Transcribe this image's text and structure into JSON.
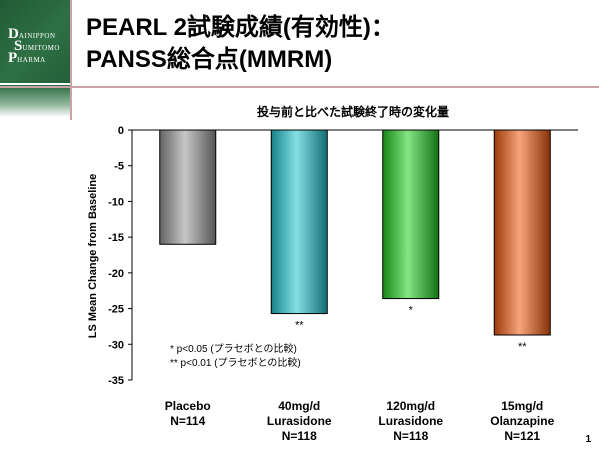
{
  "logo": {
    "line1_initial": "D",
    "line1_rest": "AINIPPON",
    "line2_initial": "S",
    "line2_rest": "UMITOMO",
    "line3_initial": "P",
    "line3_rest": "HARMA"
  },
  "slide": {
    "title_line1": "PEARL 2試験成績(有効性)：",
    "title_line2": "PANSS総合点(MMRM)",
    "page_number": "1"
  },
  "chart_data": {
    "type": "bar",
    "title": "投与前と比べた試験終了時の変化量",
    "ylabel": "LS Mean Change from Baseline",
    "xlabel": "",
    "ylim": [
      -35,
      0
    ],
    "yticks": [
      0,
      -5,
      -10,
      -15,
      -20,
      -25,
      -30,
      -35
    ],
    "grid": false,
    "categories": [
      [
        "Placebo",
        "N=114"
      ],
      [
        "40mg/d",
        "Lurasidone",
        "N=118"
      ],
      [
        "120mg/d",
        "Lurasidone",
        "N=118"
      ],
      [
        "15mg/d",
        "Olanzapine",
        "N=121"
      ]
    ],
    "values": [
      -16.0,
      -25.7,
      -23.6,
      -28.7
    ],
    "significance": [
      "",
      "**",
      "*",
      "**"
    ],
    "colors": [
      "#9a9a9a",
      "#22c6d2",
      "#22d022",
      "#f25a10"
    ],
    "notes": [
      "*   p<0.05 (プラセボとの比較)",
      "** p<0.01 (プラセボとの比較)"
    ]
  }
}
